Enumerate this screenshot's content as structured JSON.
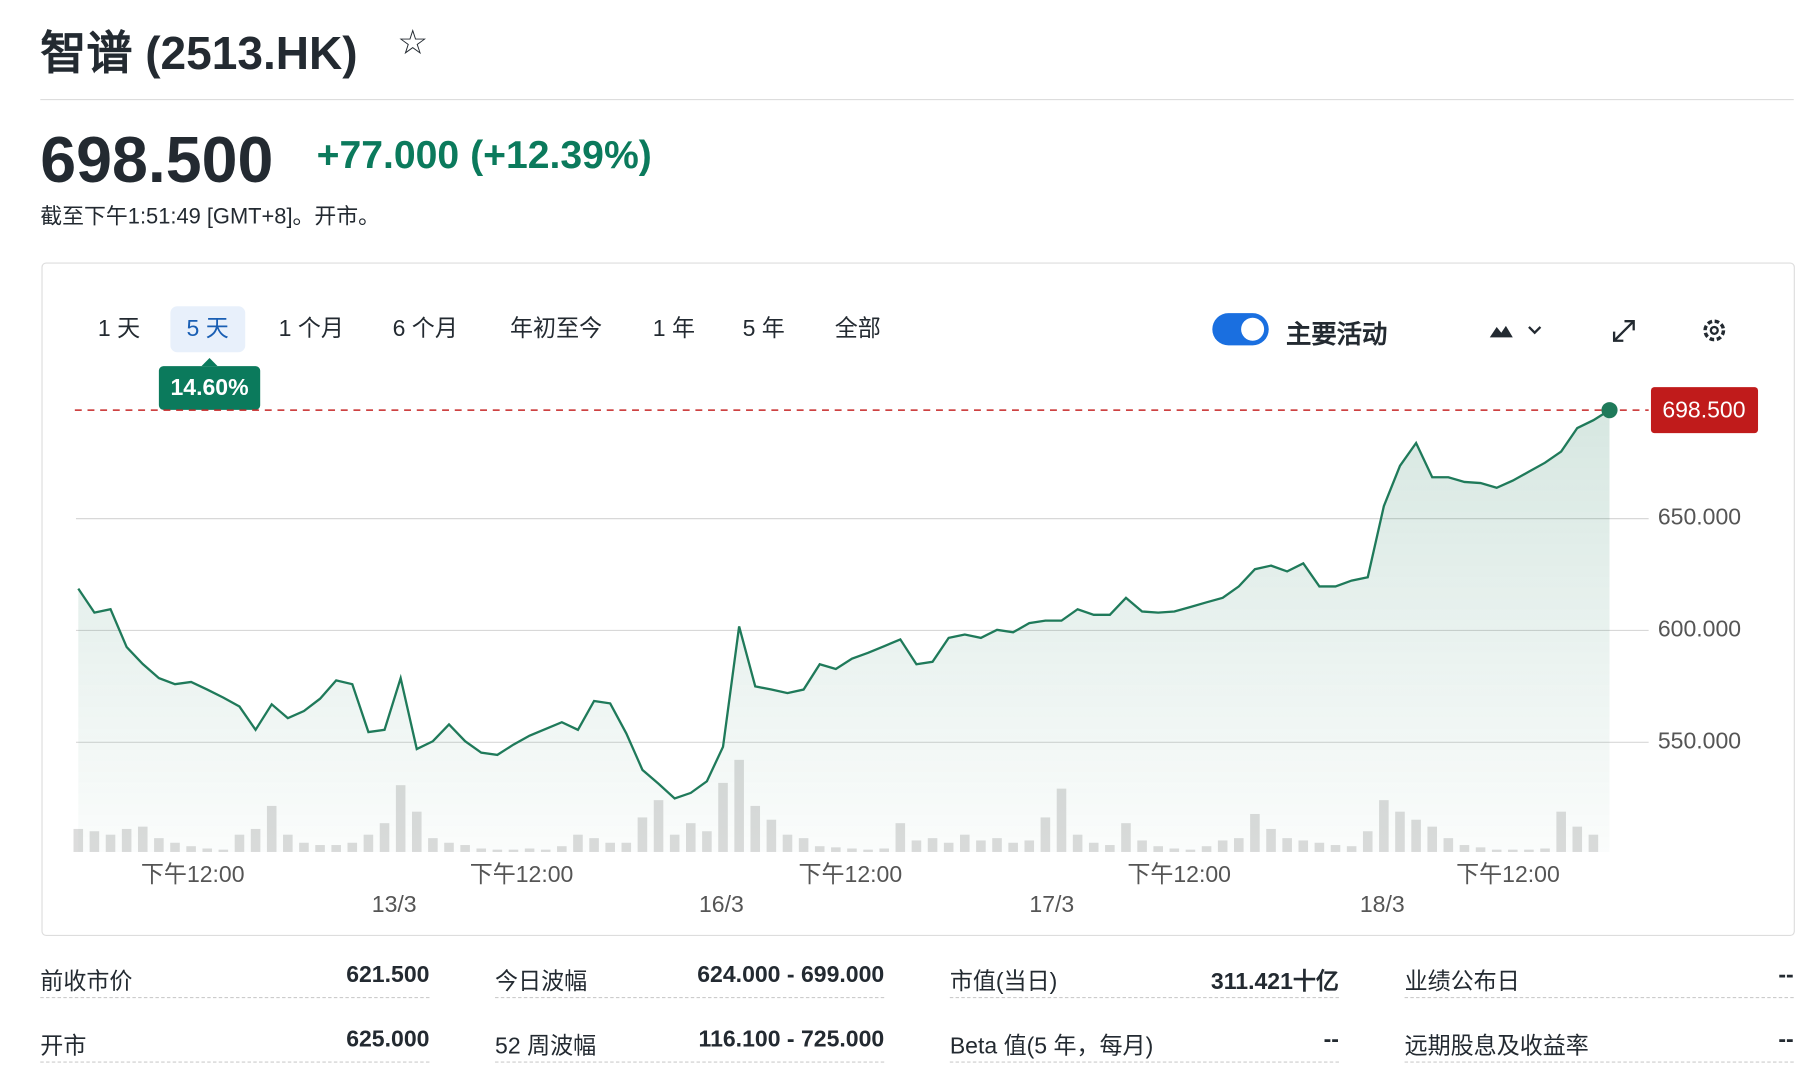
{
  "header": {
    "title": "智谱 (2513.HK)",
    "price": "698.500",
    "change": "+77.000",
    "change_pct": "(+12.39%)",
    "timestamp": "截至下午1:51:49 [GMT+8]。开市。"
  },
  "range_tabs": {
    "items": [
      "1 天",
      "5 天",
      "1 个月",
      "6 个月",
      "年初至今",
      "1 年",
      "5 年",
      "全部"
    ],
    "selected": 1,
    "badge": "14.60%"
  },
  "toggle": {
    "label": "主要活动",
    "on": true
  },
  "chart_data": {
    "type": "line",
    "color": "#1f7a5a",
    "values": [
      618.7,
      608,
      609.5,
      592.6,
      585,
      578.7,
      576,
      577,
      573.6,
      570,
      566,
      555.6,
      567,
      560.8,
      564,
      569.5,
      577.7,
      576,
      554.6,
      555.6,
      578.7,
      547,
      550.5,
      558,
      550.5,
      545.4,
      544.4,
      549,
      553,
      556,
      559,
      555.6,
      568.5,
      567.4,
      554,
      537.7,
      531.5,
      524.9,
      527.4,
      532.6,
      548,
      601.8,
      575,
      573.6,
      572,
      573.6,
      584.9,
      582.8,
      587.4,
      590,
      593,
      596,
      584.9,
      586,
      596.7,
      598.2,
      596.7,
      600.3,
      599.2,
      603.3,
      604.4,
      604.4,
      609.5,
      607,
      607,
      614.6,
      608.5,
      608,
      608.5,
      610.5,
      612.6,
      614.6,
      619.7,
      627.4,
      629,
      626.4,
      630,
      619.7,
      619.7,
      622.3,
      623.8,
      655.6,
      673.6,
      683.8,
      668.5,
      668.5,
      666.4,
      665.9,
      663.8,
      667,
      671,
      675,
      680,
      690.5,
      694,
      698.5
    ],
    "volume": [
      20,
      18,
      15,
      20,
      22,
      12,
      8,
      5,
      3,
      2,
      15,
      20,
      40,
      15,
      8,
      6,
      6,
      8,
      15,
      25,
      58,
      35,
      12,
      8,
      6,
      3,
      2,
      2,
      3,
      2,
      5,
      15,
      12,
      8,
      8,
      30,
      45,
      15,
      25,
      18,
      60,
      80,
      40,
      28,
      15,
      12,
      5,
      4,
      3,
      2,
      3,
      25,
      10,
      12,
      8,
      15,
      10,
      12,
      8,
      10,
      30,
      55,
      15,
      8,
      6,
      25,
      10,
      5,
      3,
      2,
      5,
      10,
      12,
      33,
      20,
      12,
      10,
      8,
      6,
      5,
      18,
      45,
      35,
      28,
      22,
      12,
      6,
      4,
      2,
      2,
      2,
      3,
      35,
      22,
      15,
      0
    ],
    "ylim": [
      501,
      712
    ],
    "yticks": [
      {
        "value": 550,
        "label": "550.000"
      },
      {
        "value": 600,
        "label": "600.000"
      },
      {
        "value": 650,
        "label": "650.000"
      }
    ],
    "xlim": [
      0,
      95
    ],
    "xticks": [
      {
        "value": 7.1,
        "label": "下午12:00"
      },
      {
        "value": 27.5,
        "label": "下午12:00"
      },
      {
        "value": 47.9,
        "label": "下午12:00"
      },
      {
        "value": 68.3,
        "label": "下午12:00"
      },
      {
        "value": 88.7,
        "label": "下午12:00"
      }
    ],
    "date_ticks": [
      {
        "value": 19.6,
        "label": "13/3"
      },
      {
        "value": 39.9,
        "label": "16/3"
      },
      {
        "value": 60.4,
        "label": "17/3"
      },
      {
        "value": 80.9,
        "label": "18/3"
      }
    ],
    "reference_line": {
      "value": 698.5,
      "label": "698.500"
    },
    "grid": true
  },
  "stats": [
    [
      [
        "前收市价",
        "621.500"
      ],
      [
        "开市",
        "625.000"
      ]
    ],
    [
      [
        "今日波幅",
        "624.000 - 699.000"
      ],
      [
        "52 周波幅",
        "116.100 - 725.000"
      ]
    ],
    [
      [
        "市值(当日)",
        "311.421十亿"
      ],
      [
        "Beta 值(5 年，每月)",
        "--"
      ]
    ],
    [
      [
        "业绩公布日",
        "--"
      ],
      [
        "远期股息及收益率",
        "--"
      ]
    ]
  ]
}
